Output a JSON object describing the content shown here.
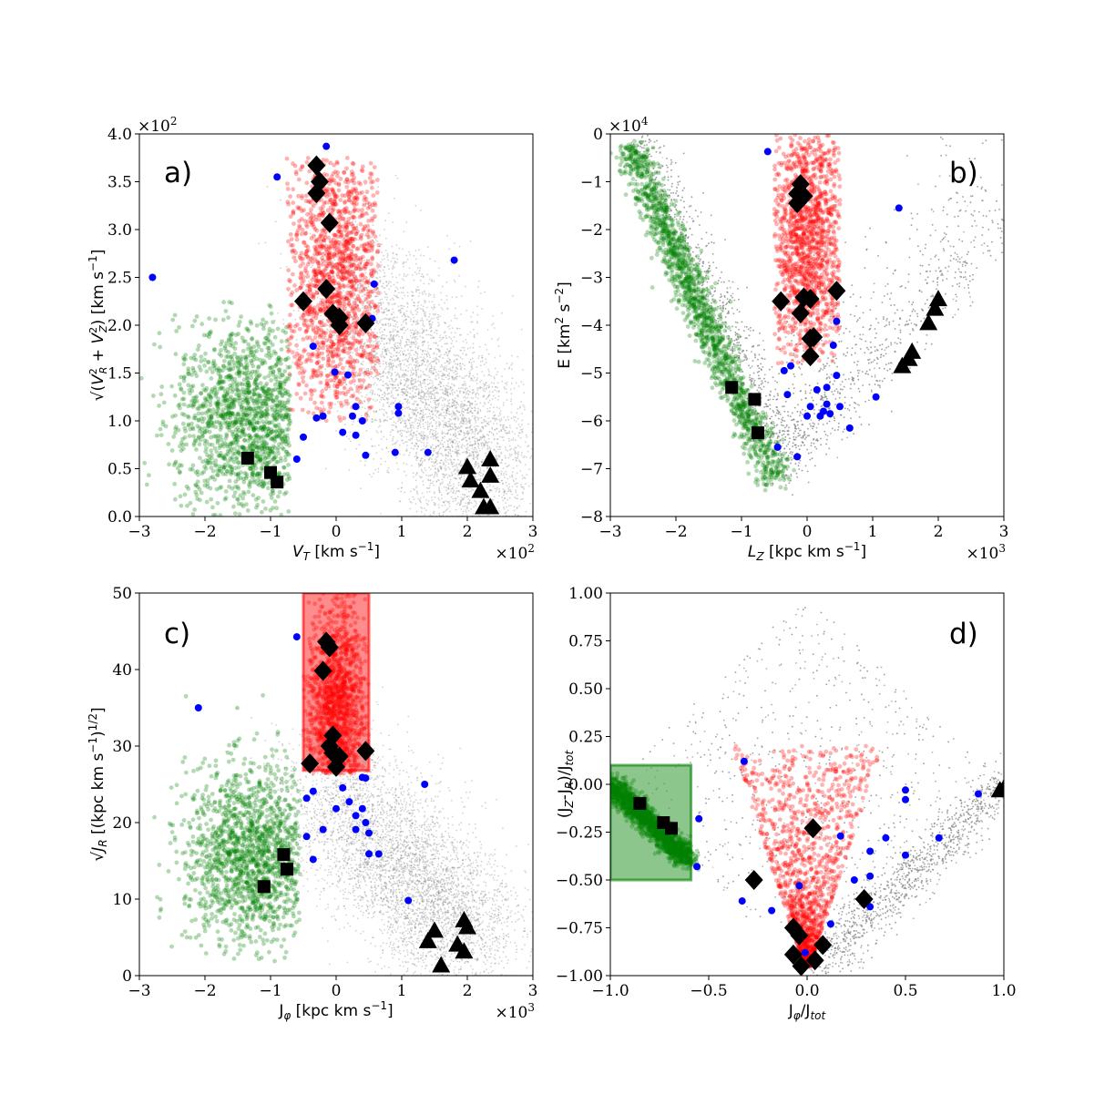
{
  "colors": {
    "background_points": "#808080",
    "halo_group": "#ff0000",
    "retrograde_group": "#008000",
    "blue_stars": "#0000ff",
    "markers": "#000000"
  },
  "chart_data": [
    {
      "type": "scatter",
      "panel": "a)",
      "xlabel": "V_T [km s^-1]",
      "ylabel": "sqrt(V_R^2 + V_Z^2) [km s^-1]",
      "x_multiplier": "×10^2",
      "y_multiplier": "×10^2",
      "xlim": [
        -3,
        3
      ],
      "ylim": [
        0,
        4
      ],
      "xticks": [
        "−3",
        "−2",
        "−1",
        "0",
        "1",
        "2",
        "3"
      ],
      "yticks": [
        "0.0",
        "0.5",
        "1.0",
        "1.5",
        "2.0",
        "2.5",
        "3.0",
        "3.5",
        "4.0"
      ],
      "clouds": [
        {
          "name": "background",
          "color": "#808080",
          "shape": "band",
          "x0": 0.05,
          "y0": 2.6,
          "x1": 2.35,
          "y1": 0.35,
          "spread": 0.45
        },
        {
          "name": "red",
          "color": "#ff0000",
          "shape": "blob",
          "cx": 0.0,
          "cy": 2.5,
          "sx": 0.4,
          "sy": 0.75,
          "xmin": -0.75,
          "xmax": 0.65,
          "ymin": 1.0,
          "ymax": 3.75
        },
        {
          "name": "green",
          "color": "#008000",
          "shape": "blob",
          "cx": -1.35,
          "cy": 1.0,
          "sx": 0.55,
          "sy": 0.5,
          "xmin": -3.0,
          "xmax": -0.7,
          "ymin": 0.0,
          "ymax": 2.25
        }
      ],
      "blue_points": [
        [
          -0.9,
          3.55
        ],
        [
          -2.8,
          2.5
        ],
        [
          1.8,
          2.68
        ],
        [
          0.58,
          2.43
        ],
        [
          -0.15,
          3.87
        ],
        [
          0.55,
          2.07
        ],
        [
          -0.35,
          1.78
        ],
        [
          0.18,
          1.48
        ],
        [
          -0.02,
          1.51
        ],
        [
          0.3,
          1.15
        ],
        [
          0.95,
          1.15
        ],
        [
          0.25,
          1.05
        ],
        [
          0.95,
          1.08
        ],
        [
          -0.3,
          1.03
        ],
        [
          -0.2,
          1.05
        ],
        [
          0.4,
          1.0
        ],
        [
          0.1,
          0.88
        ],
        [
          0.3,
          0.85
        ],
        [
          -0.5,
          0.83
        ],
        [
          0.9,
          0.67
        ],
        [
          1.4,
          0.67
        ],
        [
          0.45,
          0.64
        ],
        [
          -0.6,
          0.6
        ]
      ],
      "diamonds": [
        [
          -0.3,
          3.67
        ],
        [
          -0.25,
          3.5
        ],
        [
          -0.3,
          3.38
        ],
        [
          -0.1,
          3.07
        ],
        [
          -0.15,
          2.38
        ],
        [
          -0.5,
          2.25
        ],
        [
          -0.05,
          2.12
        ],
        [
          0.05,
          2.08
        ],
        [
          0.45,
          2.02
        ],
        [
          0.05,
          2.0
        ]
      ],
      "squares": [
        [
          -1.35,
          0.61
        ],
        [
          -1.0,
          0.46
        ],
        [
          -0.9,
          0.36
        ]
      ],
      "triangles": [
        [
          2.35,
          0.6
        ],
        [
          2.0,
          0.52
        ],
        [
          2.05,
          0.38
        ],
        [
          2.35,
          0.43
        ],
        [
          2.2,
          0.27
        ],
        [
          2.25,
          0.1
        ],
        [
          2.35,
          0.1
        ]
      ]
    },
    {
      "type": "scatter",
      "panel": "b)",
      "xlabel": "L_Z [kpc km s^-1]",
      "ylabel": "E [km^2 s^-2]",
      "x_multiplier": "×10^3",
      "y_multiplier": "×10^4",
      "xlim": [
        -3,
        3
      ],
      "ylim": [
        -8,
        0
      ],
      "xticks": [
        "−3",
        "−2",
        "−1",
        "0",
        "1",
        "2",
        "3"
      ],
      "yticks": [
        "−8",
        "−7",
        "−6",
        "−5",
        "−4",
        "−3",
        "−2",
        "−1",
        "0"
      ],
      "clouds": [
        {
          "name": "background",
          "color": "#808080",
          "shape": "vee",
          "vx": -0.3,
          "vy": -6.6,
          "lx": -2.8,
          "ly": 0.0,
          "rx": 3.0,
          "ry": -1.7,
          "spread": 0.22
        },
        {
          "name": "red",
          "color": "#ff0000",
          "shape": "blob",
          "cx": 0.0,
          "cy": -2.2,
          "sx": 0.3,
          "sy": 1.4,
          "xmin": -0.5,
          "xmax": 0.5,
          "ymin": -4.8,
          "ymax": 0.0
        },
        {
          "name": "green",
          "color": "#008000",
          "shape": "band",
          "x0": -2.7,
          "y0": -0.3,
          "x1": -0.5,
          "y1": -7.2,
          "spread": 0.12
        }
      ],
      "blue_points": [
        [
          -0.6,
          -0.37
        ],
        [
          1.4,
          -1.55
        ],
        [
          0.45,
          -3.92
        ],
        [
          0.4,
          -4.42
        ],
        [
          -0.35,
          -4.95
        ],
        [
          -0.25,
          -4.85
        ],
        [
          0.45,
          -5.05
        ],
        [
          0.15,
          -5.35
        ],
        [
          0.3,
          -5.3
        ],
        [
          -0.3,
          -5.45
        ],
        [
          1.05,
          -5.5
        ],
        [
          0.05,
          -5.7
        ],
        [
          0.3,
          -5.65
        ],
        [
          0.5,
          -5.7
        ],
        [
          0.25,
          -5.8
        ],
        [
          0.35,
          -5.85
        ],
        [
          0.0,
          -5.9
        ],
        [
          0.2,
          -5.9
        ],
        [
          0.65,
          -6.15
        ],
        [
          -0.45,
          -6.55
        ],
        [
          -0.15,
          -6.75
        ]
      ],
      "diamonds": [
        [
          -0.1,
          -1.05
        ],
        [
          -0.15,
          -1.25
        ],
        [
          -0.05,
          -1.3
        ],
        [
          -0.15,
          -1.45
        ],
        [
          0.45,
          -3.28
        ],
        [
          -0.4,
          -3.5
        ],
        [
          -0.05,
          -3.42
        ],
        [
          0.05,
          -3.45
        ],
        [
          -0.1,
          -3.75
        ],
        [
          0.05,
          -4.28
        ],
        [
          0.1,
          -4.25
        ],
        [
          0.05,
          -4.65
        ]
      ],
      "squares": [
        [
          -1.15,
          -5.3
        ],
        [
          -0.8,
          -5.55
        ],
        [
          -0.75,
          -6.25
        ]
      ],
      "triangles": [
        [
          2.0,
          -3.45
        ],
        [
          1.95,
          -3.65
        ],
        [
          1.85,
          -3.95
        ],
        [
          1.6,
          -4.55
        ],
        [
          1.55,
          -4.7
        ],
        [
          1.45,
          -4.85
        ]
      ]
    },
    {
      "type": "scatter",
      "panel": "c)",
      "xlabel": "J_phi [kpc km s^-1]",
      "ylabel": "sqrt(J_R) [(kpc km s^-1)^1/2]",
      "x_multiplier": "×10^3",
      "y_multiplier": "",
      "xlim": [
        -3,
        3
      ],
      "ylim": [
        0,
        55
      ],
      "xticks": [
        "−3",
        "−2",
        "−1",
        "0",
        "1",
        "2",
        "3"
      ],
      "yticks": [
        "0",
        "10",
        "20",
        "30",
        "40",
        "50"
      ],
      "selection_box": {
        "color": "#ff0000",
        "x0": -0.5,
        "x1": 0.5,
        "y0": 29.5,
        "y1": 55
      },
      "clouds": [
        {
          "name": "background",
          "color": "#808080",
          "shape": "band",
          "x0": -0.3,
          "y0": 30.0,
          "x1": 2.0,
          "y1": 5.0,
          "spread": 4.5
        },
        {
          "name": "red",
          "color": "#ff0000",
          "shape": "blob",
          "cx": 0.0,
          "cy": 38.0,
          "sx": 0.22,
          "sy": 8.0,
          "xmin": -0.5,
          "xmax": 0.5,
          "ymin": 29.0,
          "ymax": 55.0
        },
        {
          "name": "green",
          "color": "#008000",
          "shape": "blob",
          "cx": -1.3,
          "cy": 17.0,
          "sx": 0.5,
          "sy": 6.5,
          "xmin": -3.0,
          "xmax": -0.55,
          "ymin": 2.0,
          "ymax": 42.0
        }
      ],
      "blue_points": [
        [
          -0.6,
          48.7
        ],
        [
          -2.1,
          38.5
        ],
        [
          1.35,
          27.5
        ],
        [
          0.4,
          28.5
        ],
        [
          0.45,
          28.4
        ],
        [
          -0.35,
          26.5
        ],
        [
          -0.45,
          25.5
        ],
        [
          0.1,
          27.0
        ],
        [
          0.2,
          25.0
        ],
        [
          0.0,
          24.0
        ],
        [
          0.4,
          24.0
        ],
        [
          0.3,
          23.0
        ],
        [
          0.45,
          22.0
        ],
        [
          0.5,
          20.5
        ],
        [
          -0.2,
          21.0
        ],
        [
          0.3,
          21.0
        ],
        [
          -0.45,
          20.0
        ],
        [
          0.5,
          17.5
        ],
        [
          0.65,
          17.5
        ],
        [
          -0.35,
          16.7
        ],
        [
          1.1,
          10.8
        ]
      ],
      "diamonds": [
        [
          -0.15,
          48.0
        ],
        [
          -0.1,
          47.2
        ],
        [
          -0.2,
          43.8
        ],
        [
          -0.05,
          34.5
        ],
        [
          -0.1,
          33.0
        ],
        [
          -0.05,
          32.0
        ],
        [
          0.05,
          31.5
        ],
        [
          0.45,
          32.3
        ],
        [
          -0.4,
          30.5
        ],
        [
          0.0,
          30.0
        ]
      ],
      "squares": [
        [
          -0.8,
          17.4
        ],
        [
          -0.75,
          15.3
        ],
        [
          -1.1,
          12.8
        ]
      ],
      "triangles": [
        [
          1.95,
          8.0
        ],
        [
          2.0,
          7.0
        ],
        [
          1.5,
          6.5
        ],
        [
          1.4,
          5.0
        ],
        [
          1.85,
          4.5
        ],
        [
          1.95,
          3.5
        ],
        [
          1.6,
          1.5
        ]
      ]
    },
    {
      "type": "scatter",
      "panel": "d)",
      "xlabel": "J_phi/J_tot",
      "ylabel": "(J_Z-J_R)/J_tot",
      "x_multiplier": "",
      "y_multiplier": "",
      "xlim": [
        -1.0,
        1.0
      ],
      "ylim": [
        -1.0,
        1.0
      ],
      "xticks": [
        "−1.0",
        "−0.5",
        "0.0",
        "0.5",
        "1.0"
      ],
      "yticks": [
        "−1.00",
        "−0.75",
        "−0.50",
        "−0.25",
        "0.00",
        "0.25",
        "0.50",
        "0.75",
        "1.00"
      ],
      "selection_box": {
        "color": "#008000",
        "x0": -1.0,
        "x1": -0.59,
        "y0": -0.5,
        "y1": 0.1
      },
      "clouds": [
        {
          "name": "background",
          "color": "#808080",
          "shape": "diamond"
        },
        {
          "name": "red",
          "color": "#ff0000",
          "shape": "blob",
          "cx": 0.0,
          "cy": -0.75,
          "sx": 0.14,
          "sy": 0.16,
          "xmin": -0.3,
          "xmax": 0.3,
          "ymin": -0.95,
          "ymax": 0.2
        },
        {
          "name": "green",
          "color": "#008000",
          "shape": "band",
          "x0": -1.0,
          "y0": 0.0,
          "x1": -0.6,
          "y1": -0.4,
          "spread": 0.03
        }
      ],
      "blue_points": [
        [
          -0.32,
          0.12
        ],
        [
          -0.55,
          -0.18
        ],
        [
          0.5,
          -0.03
        ],
        [
          0.5,
          -0.08
        ],
        [
          0.87,
          -0.05
        ],
        [
          0.67,
          -0.28
        ],
        [
          0.17,
          -0.27
        ],
        [
          0.4,
          -0.28
        ],
        [
          0.32,
          -0.35
        ],
        [
          0.5,
          -0.37
        ],
        [
          -0.56,
          -0.43
        ],
        [
          0.32,
          -0.48
        ],
        [
          0.24,
          -0.5
        ],
        [
          -0.04,
          -0.53
        ],
        [
          -0.33,
          -0.61
        ],
        [
          -0.18,
          -0.66
        ],
        [
          0.32,
          -0.64
        ],
        [
          0.12,
          -0.73
        ],
        [
          -0.01,
          -0.88
        ]
      ],
      "diamonds": [
        [
          0.03,
          -0.23
        ],
        [
          -0.27,
          -0.5
        ],
        [
          0.29,
          -0.6
        ],
        [
          -0.07,
          -0.75
        ],
        [
          -0.04,
          -0.79
        ],
        [
          0.08,
          -0.84
        ],
        [
          -0.07,
          -0.89
        ],
        [
          0.04,
          -0.92
        ],
        [
          -0.03,
          -0.95
        ]
      ],
      "squares": [
        [
          -0.85,
          -0.1
        ],
        [
          -0.73,
          -0.2
        ],
        [
          -0.69,
          -0.23
        ]
      ],
      "triangles": [
        [
          0.98,
          -0.03
        ],
        [
          1.0,
          -0.02
        ]
      ]
    }
  ]
}
